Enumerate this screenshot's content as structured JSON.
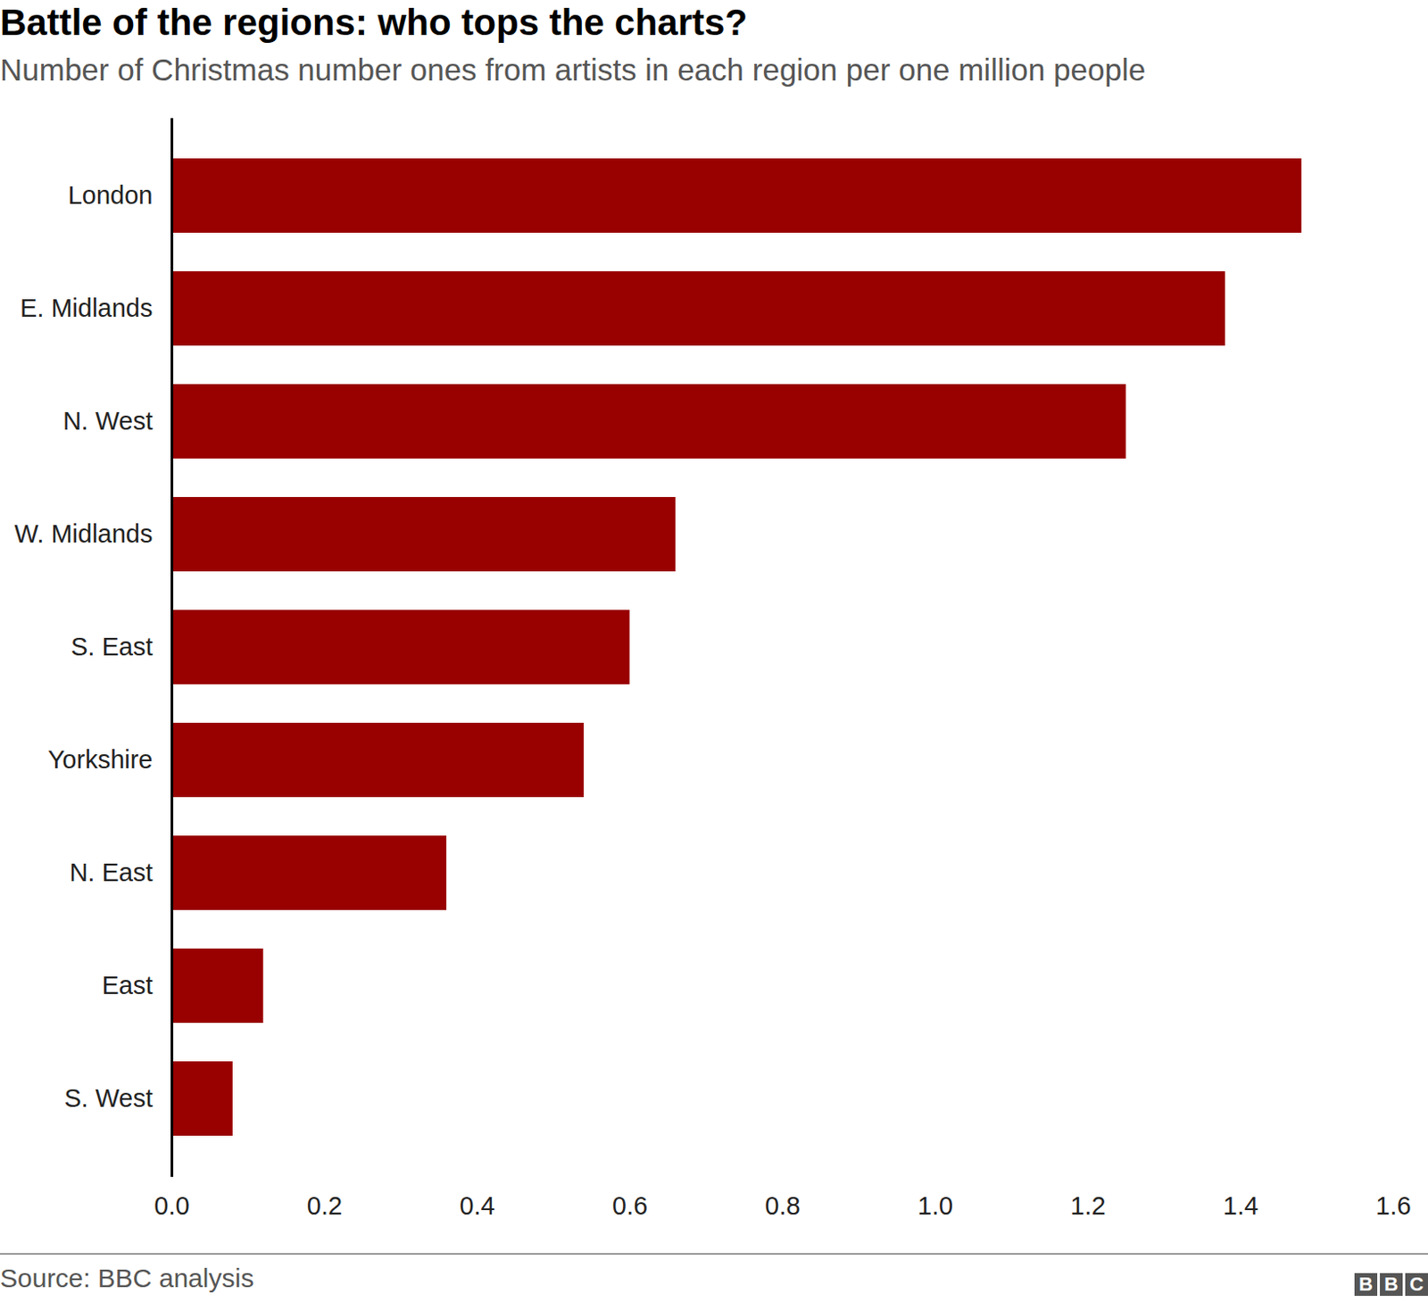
{
  "chart_data": {
    "type": "bar",
    "orientation": "horizontal",
    "title": "Battle of the regions: who tops the charts?",
    "subtitle": "Number of Christmas number ones from artists in each region per one million people",
    "categories": [
      "London",
      "E. Midlands",
      "N. West",
      "W. Midlands",
      "S. East",
      "Yorkshire",
      "N. East",
      "East",
      "S. West"
    ],
    "values": [
      1.48,
      1.38,
      1.25,
      0.66,
      0.6,
      0.54,
      0.36,
      0.12,
      0.08
    ],
    "color": "#990000",
    "xlim": [
      0,
      1.6
    ],
    "xticks": [
      {
        "value": 0,
        "label": "0.0"
      },
      0.2,
      0.4,
      0.6,
      0.8,
      {
        "value": 1,
        "label": "1.0"
      },
      1.2,
      1.4,
      1.6
    ],
    "grid": false,
    "source": "Source: BBC analysis",
    "brand": "BBC"
  }
}
